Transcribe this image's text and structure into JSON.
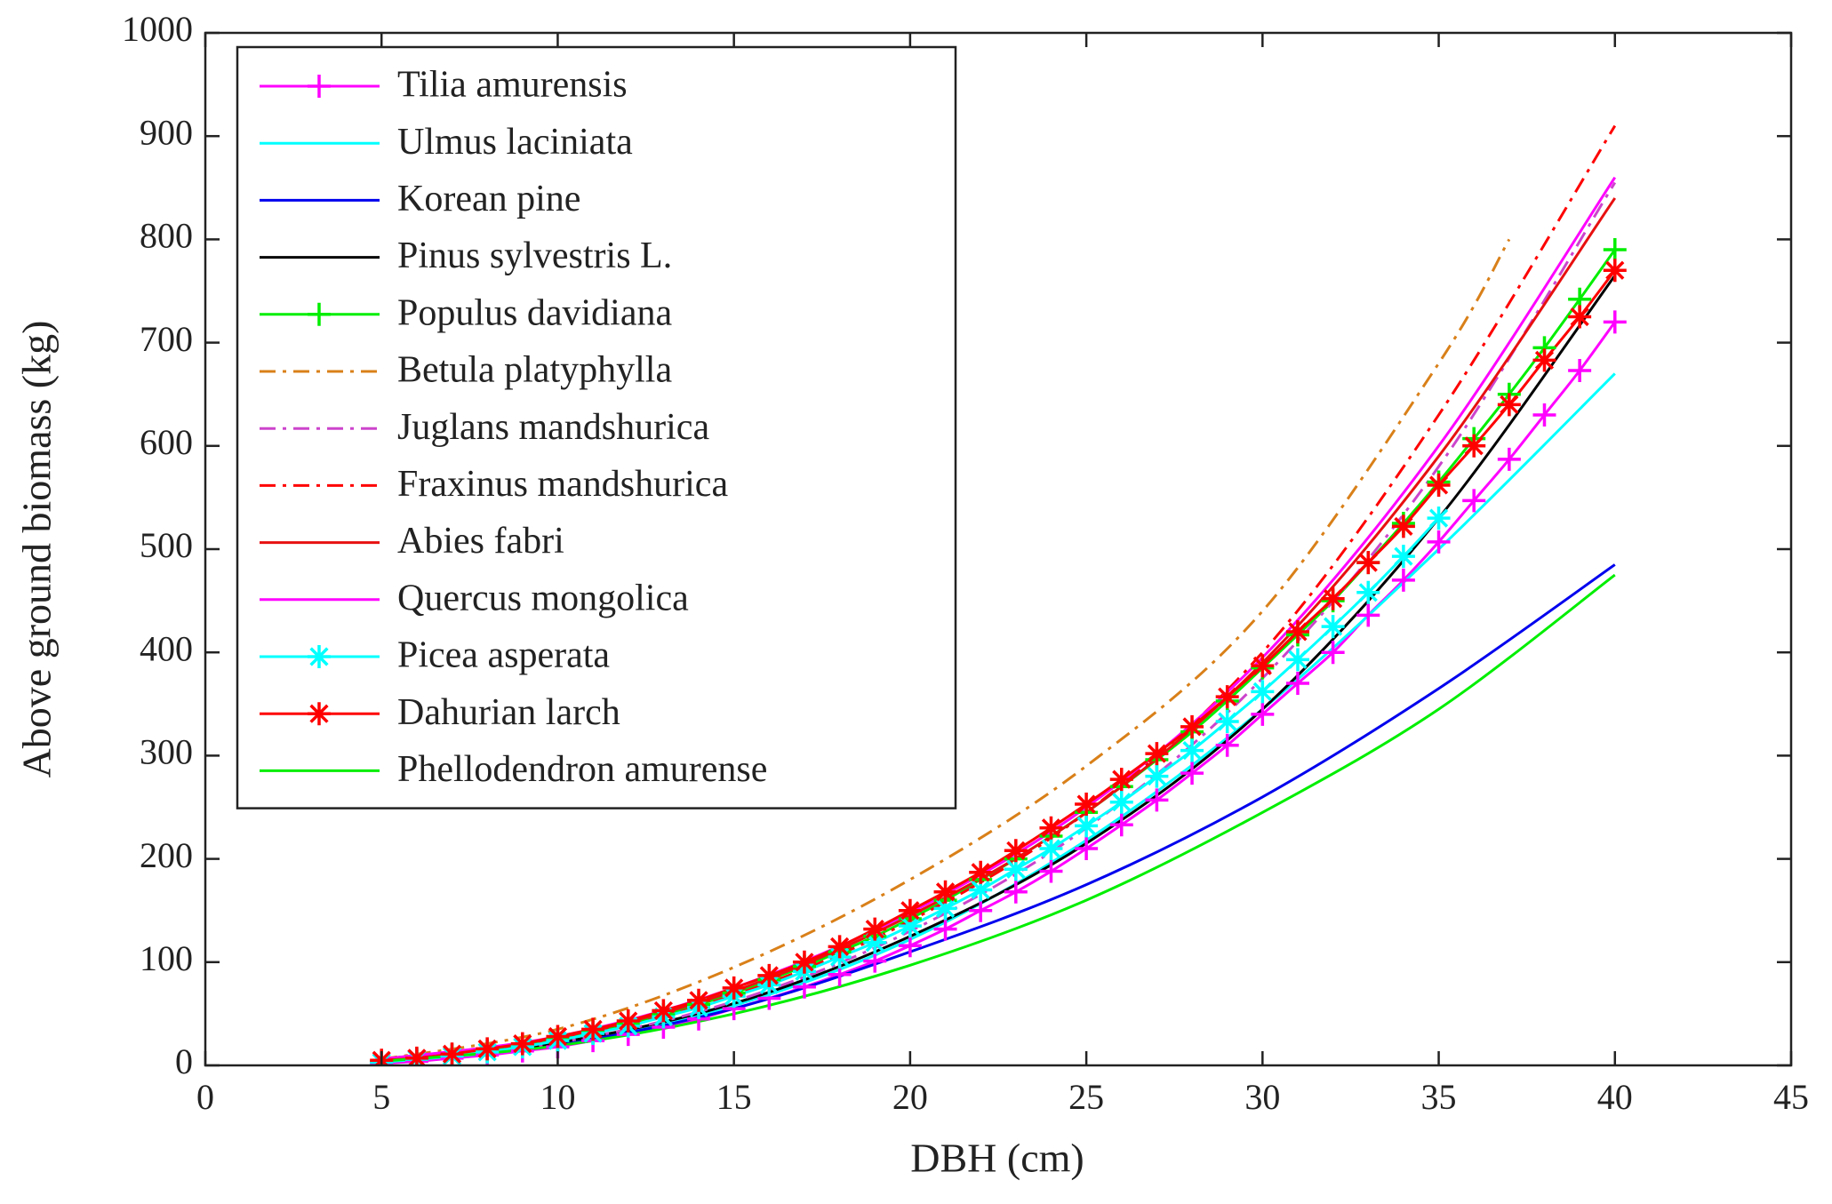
{
  "chart_data": {
    "type": "line",
    "xlabel": "DBH (cm)",
    "ylabel": "Above ground biomass (kg)",
    "xlim": [
      0,
      45
    ],
    "xticks": [
      0,
      5,
      10,
      15,
      20,
      25,
      30,
      35,
      40,
      45
    ],
    "ylim": [
      0,
      1000
    ],
    "yticks": [
      0,
      100,
      200,
      300,
      400,
      500,
      600,
      700,
      800,
      900,
      1000
    ],
    "legend": "upper left",
    "series": [
      {
        "name": "Tilia amurensis",
        "color": "#ff00ff",
        "marker": "+",
        "dash": "solid",
        "x": [
          5,
          6,
          7,
          8,
          9,
          10,
          11,
          12,
          13,
          14,
          15,
          16,
          17,
          18,
          19,
          20,
          21,
          22,
          23,
          24,
          25,
          26,
          27,
          28,
          29,
          30,
          31,
          32,
          33,
          34,
          35,
          36,
          37,
          38,
          39,
          40
        ],
        "values": [
          2,
          4,
          7,
          10,
          14,
          18,
          24,
          30,
          37,
          45,
          55,
          65,
          76,
          88,
          101,
          116,
          132,
          150,
          168,
          188,
          210,
          233,
          257,
          283,
          310,
          340,
          370,
          400,
          436,
          470,
          507,
          547,
          587,
          630,
          673,
          720
        ]
      },
      {
        "name": "Ulmus laciniata",
        "color": "#00ffff",
        "marker": "none",
        "dash": "solid",
        "x": [
          5,
          10,
          15,
          20,
          25,
          30,
          35,
          40
        ],
        "values": [
          3,
          20,
          58,
          122,
          218,
          345,
          500,
          670
        ]
      },
      {
        "name": "Korean pine",
        "color": "#0000ee",
        "marker": "none",
        "dash": "solid",
        "x": [
          5,
          10,
          15,
          20,
          25,
          30,
          35,
          40
        ],
        "values": [
          4,
          20,
          55,
          110,
          175,
          260,
          365,
          485
        ]
      },
      {
        "name": "Pinus sylvestris L.",
        "color": "#000000",
        "marker": "none",
        "dash": "solid",
        "x": [
          5,
          10,
          15,
          20,
          25,
          30,
          35,
          40
        ],
        "values": [
          4,
          22,
          60,
          125,
          215,
          345,
          530,
          765
        ]
      },
      {
        "name": "Populus davidiana",
        "color": "#00ee00",
        "marker": "+",
        "dash": "solid",
        "x": [
          5,
          6,
          7,
          8,
          9,
          10,
          11,
          12,
          13,
          14,
          15,
          16,
          17,
          18,
          19,
          20,
          21,
          22,
          23,
          24,
          25,
          26,
          27,
          28,
          29,
          30,
          31,
          32,
          33,
          34,
          35,
          36,
          37,
          38,
          39,
          40
        ],
        "values": [
          4,
          6,
          10,
          14,
          19,
          25,
          32,
          40,
          49,
          59,
          70,
          83,
          96,
          110,
          125,
          142,
          160,
          180,
          200,
          222,
          245,
          270,
          296,
          323,
          353,
          385,
          417,
          450,
          487,
          525,
          565,
          607,
          650,
          695,
          742,
          790
        ]
      },
      {
        "name": "Betula platyphylla",
        "color": "#d98019",
        "marker": "none",
        "dash": "dashdot",
        "x": [
          5,
          10,
          15,
          20,
          25,
          30,
          35,
          37
        ],
        "values": [
          6,
          35,
          95,
          180,
          290,
          440,
          680,
          800
        ]
      },
      {
        "name": "Juglans mandshurica",
        "color": "#cc44cc",
        "marker": "none",
        "dash": "dashdot",
        "x": [
          5,
          10,
          15,
          20,
          25,
          30,
          35,
          40
        ],
        "values": [
          4,
          22,
          62,
          130,
          230,
          375,
          580,
          855
        ]
      },
      {
        "name": "Fraxinus mandshurica",
        "color": "#ff0000",
        "marker": "none",
        "dash": "dashdot",
        "x": [
          5,
          10,
          15,
          20,
          25,
          30,
          35,
          40
        ],
        "values": [
          5,
          25,
          68,
          140,
          245,
          400,
          630,
          910
        ]
      },
      {
        "name": "Abies fabri",
        "color": "#e81010",
        "marker": "none",
        "dash": "solid",
        "x": [
          5,
          10,
          15,
          20,
          25,
          30,
          35,
          40
        ],
        "values": [
          6,
          27,
          72,
          145,
          245,
          390,
          590,
          840
        ]
      },
      {
        "name": "Quercus mongolica",
        "color": "#ff00ff",
        "marker": "none",
        "dash": "solid",
        "x": [
          5,
          10,
          15,
          20,
          25,
          30,
          35,
          40
        ],
        "values": [
          6,
          28,
          75,
          148,
          250,
          395,
          600,
          860
        ]
      },
      {
        "name": "Picea asperata",
        "color": "#00ffff",
        "marker": "*",
        "dash": "solid",
        "x": [
          5,
          6,
          7,
          8,
          9,
          10,
          11,
          12,
          13,
          14,
          15,
          16,
          17,
          18,
          19,
          20,
          21,
          22,
          23,
          24,
          25,
          26,
          27,
          28,
          29,
          30,
          31,
          32,
          33,
          34,
          35
        ],
        "values": [
          3,
          6,
          9,
          13,
          18,
          24,
          31,
          38,
          47,
          56,
          67,
          78,
          91,
          105,
          119,
          135,
          152,
          170,
          190,
          210,
          232,
          255,
          280,
          305,
          333,
          362,
          393,
          425,
          458,
          493,
          530
        ]
      },
      {
        "name": "Dahurian larch",
        "color": "#ff0000",
        "marker": "*",
        "dash": "solid",
        "x": [
          5,
          6,
          7,
          8,
          9,
          10,
          11,
          12,
          13,
          14,
          15,
          16,
          17,
          18,
          19,
          20,
          21,
          22,
          23,
          24,
          25,
          26,
          27,
          28,
          29,
          30,
          31,
          32,
          33,
          34,
          35,
          36,
          37,
          38,
          39,
          40
        ],
        "values": [
          5,
          7,
          11,
          16,
          21,
          28,
          35,
          43,
          53,
          63,
          75,
          87,
          100,
          115,
          132,
          150,
          168,
          187,
          208,
          230,
          253,
          277,
          302,
          328,
          357,
          387,
          420,
          452,
          487,
          522,
          562,
          600,
          640,
          683,
          725,
          770
        ]
      },
      {
        "name": "Phellodendron amurense",
        "color": "#00ee00",
        "marker": "none",
        "dash": "solid",
        "x": [
          5,
          10,
          15,
          20,
          25,
          30,
          35,
          40
        ],
        "values": [
          4,
          19,
          50,
          97,
          160,
          245,
          345,
          475
        ]
      }
    ]
  }
}
